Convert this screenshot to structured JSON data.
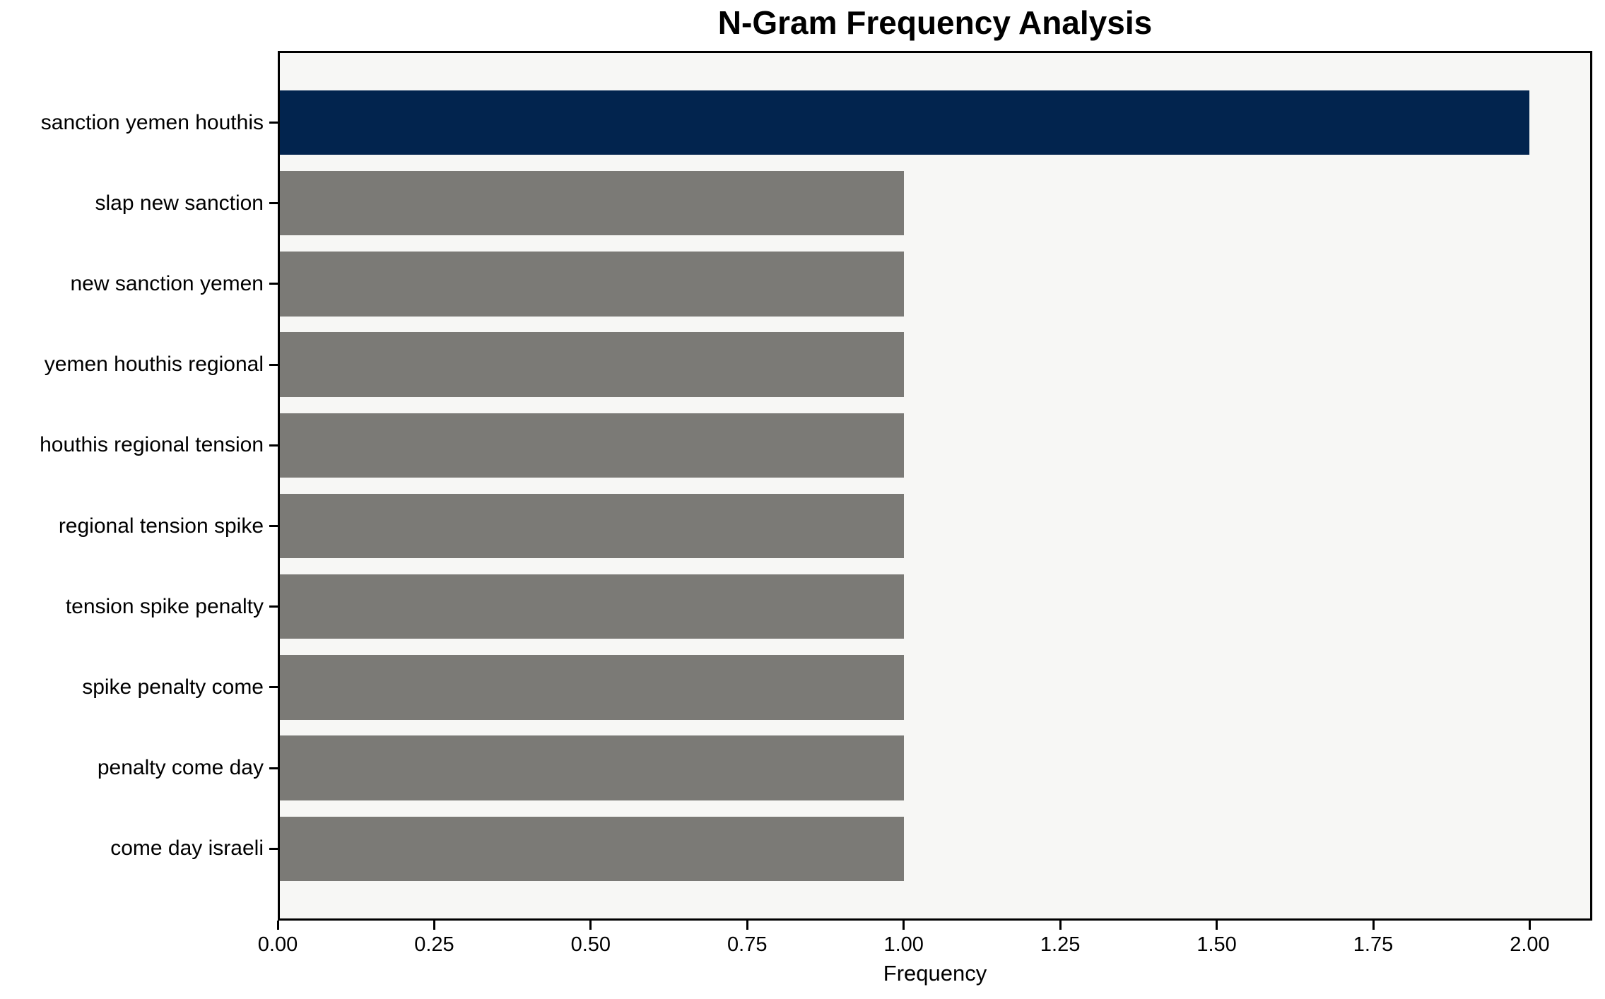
{
  "chart_data": {
    "type": "bar",
    "orientation": "horizontal",
    "title": "N-Gram Frequency Analysis",
    "xlabel": "Frequency",
    "ylabel": "",
    "categories": [
      "sanction yemen houthis",
      "slap new sanction",
      "new sanction yemen",
      "yemen houthis regional",
      "houthis regional tension",
      "regional tension spike",
      "tension spike penalty",
      "spike penalty come",
      "penalty come day",
      "come day israeli"
    ],
    "values": [
      2,
      1,
      1,
      1,
      1,
      1,
      1,
      1,
      1,
      1
    ],
    "bar_colors": [
      "#02244e",
      "#7b7a76",
      "#7b7a76",
      "#7b7a76",
      "#7b7a76",
      "#7b7a76",
      "#7b7a76",
      "#7b7a76",
      "#7b7a76",
      "#7b7a76"
    ],
    "xlim": [
      0,
      2.1
    ],
    "xtick_values": [
      0,
      0.25,
      0.5,
      0.75,
      1.0,
      1.25,
      1.5,
      1.75,
      2.0
    ],
    "xtick_labels": [
      "0.00",
      "0.25",
      "0.50",
      "0.75",
      "1.00",
      "1.25",
      "1.50",
      "1.75",
      "2.00"
    ],
    "grid": false,
    "legend": false,
    "colors": {
      "highlight_bar": "#02244e",
      "default_bar": "#7b7a76",
      "plot_background": "#f7f7f5",
      "figure_background": "#ffffff",
      "axis": "#000000"
    }
  }
}
